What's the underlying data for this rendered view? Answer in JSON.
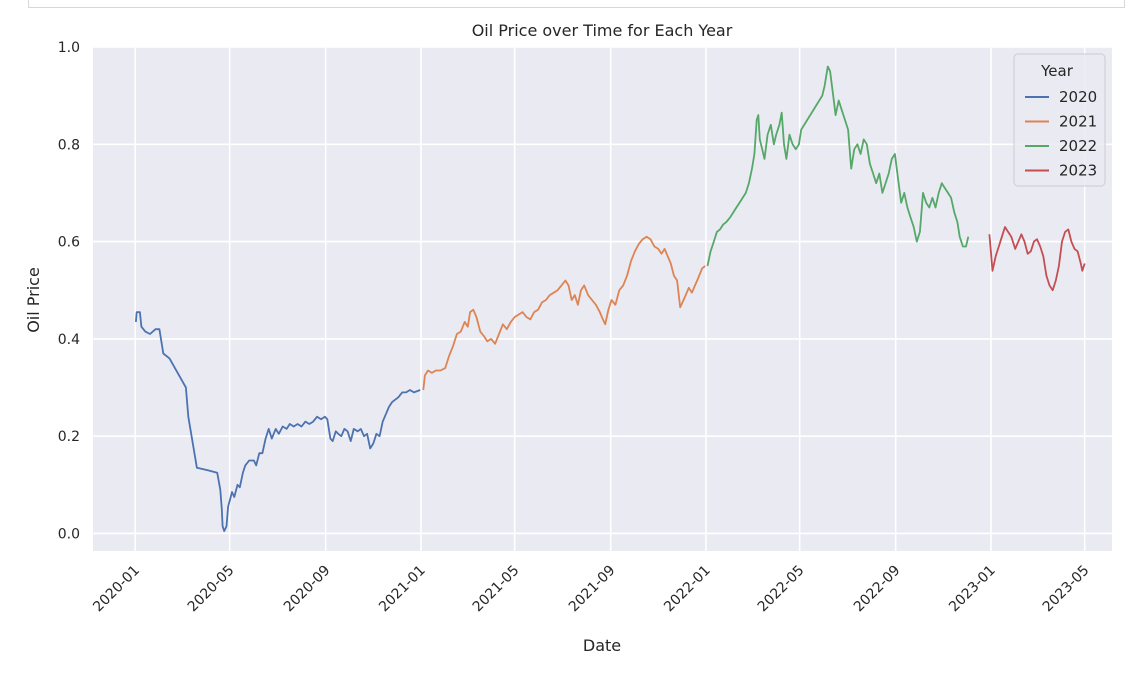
{
  "chart_data": {
    "type": "line",
    "title": "Oil Price over Time for Each Year",
    "xlabel": "Date",
    "ylabel": "Oil Price",
    "xlim": [
      "2019-11-08",
      "2023-06-05"
    ],
    "ylim": [
      -0.036,
      1.0
    ],
    "x_ticks": [
      "2020-01",
      "2020-05",
      "2020-09",
      "2021-01",
      "2021-05",
      "2021-09",
      "2022-01",
      "2022-05",
      "2022-09",
      "2023-01",
      "2023-05"
    ],
    "y_ticks": [
      "0.0",
      "0.2",
      "0.4",
      "0.6",
      "0.8",
      "1.0"
    ],
    "grid": true,
    "legend": {
      "title": "Year",
      "position": "top-right"
    },
    "series": [
      {
        "name": "2020",
        "color": "#4c72b0",
        "points": [
          [
            "2020-01-02",
            0.435
          ],
          [
            "2020-01-03",
            0.455
          ],
          [
            "2020-01-07",
            0.455
          ],
          [
            "2020-01-09",
            0.425
          ],
          [
            "2020-01-14",
            0.415
          ],
          [
            "2020-01-20",
            0.41
          ],
          [
            "2020-01-27",
            0.42
          ],
          [
            "2020-02-01",
            0.42
          ],
          [
            "2020-02-06",
            0.37
          ],
          [
            "2020-02-14",
            0.36
          ],
          [
            "2020-03-06",
            0.3
          ],
          [
            "2020-03-09",
            0.24
          ],
          [
            "2020-03-20",
            0.135
          ],
          [
            "2020-04-03",
            0.13
          ],
          [
            "2020-04-15",
            0.125
          ],
          [
            "2020-04-19",
            0.09
          ],
          [
            "2020-04-21",
            0.05
          ],
          [
            "2020-04-22",
            0.015
          ],
          [
            "2020-04-24",
            0.005
          ],
          [
            "2020-04-27",
            0.015
          ],
          [
            "2020-04-29",
            0.055
          ],
          [
            "2020-05-04",
            0.085
          ],
          [
            "2020-05-07",
            0.075
          ],
          [
            "2020-05-11",
            0.1
          ],
          [
            "2020-05-14",
            0.095
          ],
          [
            "2020-05-18",
            0.125
          ],
          [
            "2020-05-21",
            0.14
          ],
          [
            "2020-05-26",
            0.15
          ],
          [
            "2020-06-01",
            0.15
          ],
          [
            "2020-06-04",
            0.14
          ],
          [
            "2020-06-08",
            0.165
          ],
          [
            "2020-06-12",
            0.165
          ],
          [
            "2020-06-16",
            0.195
          ],
          [
            "2020-06-20",
            0.215
          ],
          [
            "2020-06-24",
            0.195
          ],
          [
            "2020-06-29",
            0.215
          ],
          [
            "2020-07-03",
            0.205
          ],
          [
            "2020-07-08",
            0.22
          ],
          [
            "2020-07-13",
            0.215
          ],
          [
            "2020-07-17",
            0.225
          ],
          [
            "2020-07-22",
            0.22
          ],
          [
            "2020-07-27",
            0.225
          ],
          [
            "2020-08-01",
            0.22
          ],
          [
            "2020-08-06",
            0.23
          ],
          [
            "2020-08-11",
            0.225
          ],
          [
            "2020-08-16",
            0.23
          ],
          [
            "2020-08-21",
            0.24
          ],
          [
            "2020-08-26",
            0.235
          ],
          [
            "2020-08-31",
            0.24
          ],
          [
            "2020-09-03",
            0.235
          ],
          [
            "2020-09-07",
            0.195
          ],
          [
            "2020-09-10",
            0.19
          ],
          [
            "2020-09-14",
            0.21
          ],
          [
            "2020-09-17",
            0.205
          ],
          [
            "2020-09-21",
            0.2
          ],
          [
            "2020-09-25",
            0.215
          ],
          [
            "2020-09-29",
            0.21
          ],
          [
            "2020-10-03",
            0.19
          ],
          [
            "2020-10-07",
            0.215
          ],
          [
            "2020-10-12",
            0.21
          ],
          [
            "2020-10-16",
            0.215
          ],
          [
            "2020-10-20",
            0.2
          ],
          [
            "2020-10-24",
            0.205
          ],
          [
            "2020-10-28",
            0.175
          ],
          [
            "2020-11-01",
            0.185
          ],
          [
            "2020-11-05",
            0.205
          ],
          [
            "2020-11-09",
            0.2
          ],
          [
            "2020-11-13",
            0.23
          ],
          [
            "2020-11-17",
            0.245
          ],
          [
            "2020-11-21",
            0.26
          ],
          [
            "2020-11-25",
            0.27
          ],
          [
            "2020-11-29",
            0.275
          ],
          [
            "2020-12-03",
            0.28
          ],
          [
            "2020-12-08",
            0.29
          ],
          [
            "2020-12-13",
            0.29
          ],
          [
            "2020-12-18",
            0.295
          ],
          [
            "2020-12-23",
            0.29
          ],
          [
            "2020-12-31",
            0.295
          ]
        ]
      },
      {
        "name": "2021",
        "color": "#dd8452",
        "points": [
          [
            "2021-01-04",
            0.295
          ],
          [
            "2021-01-06",
            0.325
          ],
          [
            "2021-01-10",
            0.335
          ],
          [
            "2021-01-15",
            0.33
          ],
          [
            "2021-01-20",
            0.335
          ],
          [
            "2021-01-26",
            0.335
          ],
          [
            "2021-02-01",
            0.34
          ],
          [
            "2021-02-06",
            0.365
          ],
          [
            "2021-02-11",
            0.385
          ],
          [
            "2021-02-16",
            0.41
          ],
          [
            "2021-02-21",
            0.415
          ],
          [
            "2021-02-26",
            0.435
          ],
          [
            "2021-03-02",
            0.425
          ],
          [
            "2021-03-05",
            0.455
          ],
          [
            "2021-03-09",
            0.46
          ],
          [
            "2021-03-13",
            0.445
          ],
          [
            "2021-03-18",
            0.415
          ],
          [
            "2021-03-23",
            0.405
          ],
          [
            "2021-03-27",
            0.395
          ],
          [
            "2021-04-01",
            0.4
          ],
          [
            "2021-04-06",
            0.39
          ],
          [
            "2021-04-11",
            0.41
          ],
          [
            "2021-04-16",
            0.43
          ],
          [
            "2021-04-21",
            0.42
          ],
          [
            "2021-04-26",
            0.435
          ],
          [
            "2021-05-01",
            0.445
          ],
          [
            "2021-05-06",
            0.45
          ],
          [
            "2021-05-11",
            0.455
          ],
          [
            "2021-05-16",
            0.445
          ],
          [
            "2021-05-21",
            0.44
          ],
          [
            "2021-05-26",
            0.455
          ],
          [
            "2021-05-31",
            0.46
          ],
          [
            "2021-06-05",
            0.475
          ],
          [
            "2021-06-10",
            0.48
          ],
          [
            "2021-06-15",
            0.49
          ],
          [
            "2021-06-20",
            0.495
          ],
          [
            "2021-06-25",
            0.5
          ],
          [
            "2021-06-30",
            0.51
          ],
          [
            "2021-07-05",
            0.52
          ],
          [
            "2021-07-09",
            0.51
          ],
          [
            "2021-07-13",
            0.48
          ],
          [
            "2021-07-17",
            0.49
          ],
          [
            "2021-07-21",
            0.47
          ],
          [
            "2021-07-25",
            0.5
          ],
          [
            "2021-07-29",
            0.51
          ],
          [
            "2021-08-03",
            0.49
          ],
          [
            "2021-08-08",
            0.48
          ],
          [
            "2021-08-13",
            0.47
          ],
          [
            "2021-08-18",
            0.455
          ],
          [
            "2021-08-22",
            0.44
          ],
          [
            "2021-08-25",
            0.43
          ],
          [
            "2021-08-29",
            0.46
          ],
          [
            "2021-09-02",
            0.48
          ],
          [
            "2021-09-07",
            0.47
          ],
          [
            "2021-09-12",
            0.5
          ],
          [
            "2021-09-17",
            0.51
          ],
          [
            "2021-09-22",
            0.53
          ],
          [
            "2021-09-27",
            0.56
          ],
          [
            "2021-10-02",
            0.58
          ],
          [
            "2021-10-07",
            0.595
          ],
          [
            "2021-10-12",
            0.605
          ],
          [
            "2021-10-17",
            0.61
          ],
          [
            "2021-10-22",
            0.605
          ],
          [
            "2021-10-27",
            0.59
          ],
          [
            "2021-11-01",
            0.585
          ],
          [
            "2021-11-05",
            0.575
          ],
          [
            "2021-11-09",
            0.585
          ],
          [
            "2021-11-13",
            0.57
          ],
          [
            "2021-11-17",
            0.555
          ],
          [
            "2021-11-21",
            0.53
          ],
          [
            "2021-11-25",
            0.52
          ],
          [
            "2021-11-29",
            0.465
          ],
          [
            "2021-12-02",
            0.475
          ],
          [
            "2021-12-06",
            0.49
          ],
          [
            "2021-12-10",
            0.505
          ],
          [
            "2021-12-14",
            0.495
          ],
          [
            "2021-12-18",
            0.51
          ],
          [
            "2021-12-22",
            0.525
          ],
          [
            "2021-12-27",
            0.545
          ],
          [
            "2021-12-31",
            0.55
          ]
        ]
      },
      {
        "name": "2022",
        "color": "#55a868",
        "points": [
          [
            "2022-01-03",
            0.55
          ],
          [
            "2022-01-07",
            0.58
          ],
          [
            "2022-01-11",
            0.6
          ],
          [
            "2022-01-15",
            0.62
          ],
          [
            "2022-01-19",
            0.625
          ],
          [
            "2022-01-23",
            0.635
          ],
          [
            "2022-01-27",
            0.64
          ],
          [
            "2022-02-01",
            0.65
          ],
          [
            "2022-02-05",
            0.66
          ],
          [
            "2022-02-09",
            0.67
          ],
          [
            "2022-02-13",
            0.68
          ],
          [
            "2022-02-17",
            0.69
          ],
          [
            "2022-02-21",
            0.7
          ],
          [
            "2022-02-25",
            0.72
          ],
          [
            "2022-03-01",
            0.75
          ],
          [
            "2022-03-04",
            0.78
          ],
          [
            "2022-03-07",
            0.85
          ],
          [
            "2022-03-09",
            0.86
          ],
          [
            "2022-03-11",
            0.81
          ],
          [
            "2022-03-14",
            0.79
          ],
          [
            "2022-03-17",
            0.77
          ],
          [
            "2022-03-21",
            0.82
          ],
          [
            "2022-03-25",
            0.84
          ],
          [
            "2022-03-29",
            0.8
          ],
          [
            "2022-04-01",
            0.82
          ],
          [
            "2022-04-05",
            0.84
          ],
          [
            "2022-04-08",
            0.865
          ],
          [
            "2022-04-11",
            0.8
          ],
          [
            "2022-04-14",
            0.77
          ],
          [
            "2022-04-18",
            0.82
          ],
          [
            "2022-04-22",
            0.8
          ],
          [
            "2022-04-26",
            0.79
          ],
          [
            "2022-04-30",
            0.8
          ],
          [
            "2022-05-03",
            0.83
          ],
          [
            "2022-05-30",
            0.9
          ],
          [
            "2022-06-02",
            0.92
          ],
          [
            "2022-06-06",
            0.96
          ],
          [
            "2022-06-09",
            0.95
          ],
          [
            "2022-06-13",
            0.9
          ],
          [
            "2022-06-16",
            0.86
          ],
          [
            "2022-06-20",
            0.89
          ],
          [
            "2022-06-24",
            0.87
          ],
          [
            "2022-06-28",
            0.85
          ],
          [
            "2022-07-02",
            0.83
          ],
          [
            "2022-07-06",
            0.75
          ],
          [
            "2022-07-10",
            0.79
          ],
          [
            "2022-07-14",
            0.8
          ],
          [
            "2022-07-18",
            0.78
          ],
          [
            "2022-07-22",
            0.81
          ],
          [
            "2022-07-26",
            0.8
          ],
          [
            "2022-07-30",
            0.76
          ],
          [
            "2022-08-03",
            0.74
          ],
          [
            "2022-08-07",
            0.72
          ],
          [
            "2022-08-11",
            0.74
          ],
          [
            "2022-08-15",
            0.7
          ],
          [
            "2022-08-19",
            0.72
          ],
          [
            "2022-08-23",
            0.74
          ],
          [
            "2022-08-27",
            0.77
          ],
          [
            "2022-08-31",
            0.78
          ],
          [
            "2022-09-04",
            0.73
          ],
          [
            "2022-09-08",
            0.68
          ],
          [
            "2022-09-12",
            0.7
          ],
          [
            "2022-09-16",
            0.67
          ],
          [
            "2022-09-20",
            0.65
          ],
          [
            "2022-09-24",
            0.63
          ],
          [
            "2022-09-28",
            0.6
          ],
          [
            "2022-10-02",
            0.62
          ],
          [
            "2022-10-06",
            0.7
          ],
          [
            "2022-10-10",
            0.68
          ],
          [
            "2022-10-14",
            0.67
          ],
          [
            "2022-10-18",
            0.69
          ],
          [
            "2022-10-22",
            0.67
          ],
          [
            "2022-10-26",
            0.7
          ],
          [
            "2022-10-30",
            0.72
          ],
          [
            "2022-11-03",
            0.71
          ],
          [
            "2022-11-07",
            0.7
          ],
          [
            "2022-11-11",
            0.69
          ],
          [
            "2022-11-15",
            0.66
          ],
          [
            "2022-11-19",
            0.64
          ],
          [
            "2022-11-22",
            0.61
          ],
          [
            "2022-11-26",
            0.59
          ],
          [
            "2022-11-30",
            0.59
          ],
          [
            "2022-12-03",
            0.61
          ]
        ]
      },
      {
        "name": "2023",
        "color": "#c44e52",
        "points": [
          [
            "2022-12-30",
            0.615
          ],
          [
            "2023-01-03",
            0.54
          ],
          [
            "2023-01-07",
            0.57
          ],
          [
            "2023-01-11",
            0.59
          ],
          [
            "2023-01-15",
            0.61
          ],
          [
            "2023-01-19",
            0.63
          ],
          [
            "2023-01-23",
            0.62
          ],
          [
            "2023-01-27",
            0.61
          ],
          [
            "2023-02-01",
            0.585
          ],
          [
            "2023-02-05",
            0.6
          ],
          [
            "2023-02-09",
            0.615
          ],
          [
            "2023-02-13",
            0.6
          ],
          [
            "2023-02-17",
            0.575
          ],
          [
            "2023-02-21",
            0.58
          ],
          [
            "2023-02-25",
            0.6
          ],
          [
            "2023-03-01",
            0.605
          ],
          [
            "2023-03-05",
            0.59
          ],
          [
            "2023-03-09",
            0.57
          ],
          [
            "2023-03-13",
            0.53
          ],
          [
            "2023-03-17",
            0.51
          ],
          [
            "2023-03-21",
            0.5
          ],
          [
            "2023-03-25",
            0.52
          ],
          [
            "2023-03-29",
            0.55
          ],
          [
            "2023-04-02",
            0.6
          ],
          [
            "2023-04-06",
            0.62
          ],
          [
            "2023-04-10",
            0.625
          ],
          [
            "2023-04-14",
            0.6
          ],
          [
            "2023-04-18",
            0.585
          ],
          [
            "2023-04-22",
            0.58
          ],
          [
            "2023-04-26",
            0.555
          ],
          [
            "2023-04-28",
            0.54
          ],
          [
            "2023-05-01",
            0.555
          ]
        ]
      }
    ]
  }
}
